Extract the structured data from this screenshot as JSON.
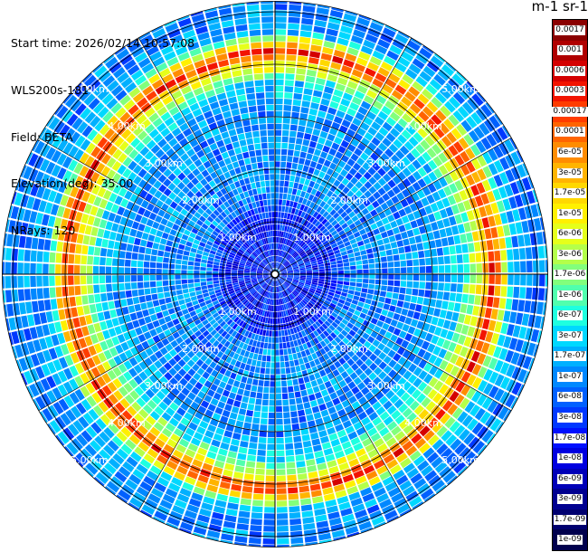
{
  "header": {
    "start_time": "Start time: 2026/02/14 10:57:08",
    "instrument": "WLS200s-181",
    "field": "Field: BETA",
    "elevation": "Elevation(deg): 35.00",
    "nrays": "NRays: 120"
  },
  "colorbar": {
    "title": "m-1 sr-1",
    "labels": [
      "0.0017",
      "0.001",
      "0.0006",
      "0.0003",
      "0.00017",
      "0.0001",
      "6e-05",
      "3e-05",
      "1.7e-05",
      "1e-05",
      "6e-06",
      "3e-06",
      "1.7e-06",
      "1e-06",
      "6e-07",
      "3e-07",
      "1.7e-07",
      "1e-07",
      "6e-08",
      "3e-08",
      "1.7e-08",
      "1e-08",
      "6e-09",
      "3e-09",
      "1.7e-09",
      "1e-09"
    ],
    "colors": [
      "#8b0000",
      "#b00000",
      "#d40000",
      "#f21400",
      "#ff3c00",
      "#ff6400",
      "#ff8c00",
      "#ffb400",
      "#ffd800",
      "#fff000",
      "#e6ff1a",
      "#b4ff4a",
      "#82ff7c",
      "#50ffae",
      "#1effe0",
      "#00d8ff",
      "#00b0ff",
      "#0088ff",
      "#0060ff",
      "#0038ff",
      "#0010ff",
      "#0000e0",
      "#0000b8",
      "#000090",
      "#000070",
      "#00004d"
    ]
  },
  "chart_data": {
    "type": "heatmap",
    "title": "",
    "projection": "polar (PPI)",
    "azimuth_rays": 120,
    "range_rings_km": [
      1,
      2,
      3,
      4,
      5
    ],
    "ring_labels": [
      "1.00km",
      "2.00km",
      "3.00km",
      "4.00km",
      "5.00km"
    ],
    "max_range_km": 5.2,
    "field": "BETA",
    "color_scale": "log",
    "grid": true,
    "radial_profile": {
      "range_km": [
        0.0,
        0.5,
        1.0,
        1.5,
        2.0,
        2.5,
        3.0,
        3.5,
        3.9,
        4.1,
        4.3,
        4.5,
        4.8,
        5.2
      ],
      "beta": [
        3e-08,
        2e-08,
        1.7e-08,
        1e-07,
        1e-07,
        1e-07,
        1e-07,
        3e-07,
        1e-05,
        0.0003,
        1e-05,
        1.7e-07,
        1e-07,
        1e-07
      ]
    }
  }
}
